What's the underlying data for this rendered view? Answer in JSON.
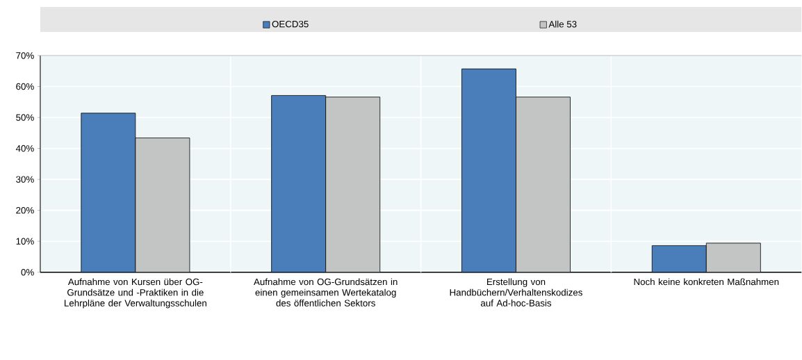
{
  "chart_data": {
    "type": "bar",
    "categories": [
      "Aufnahme von Kursen über OG-Grundsätze und -Praktiken in die Lehrpläne der Verwaltungsschulen",
      "Aufnahme von OG-Grundsätzen in einen gemeinsamen Wertekatalog des öffentlichen Sektors",
      "Erstellung von Handbüchern/Verhaltenskodizes auf Ad-hoc-Basis",
      "Noch keine konkreten Maßnahmen"
    ],
    "series": [
      {
        "name": "OECD35",
        "color": "#4a7ebb",
        "values": [
          51.4,
          57.1,
          65.7,
          8.6
        ]
      },
      {
        "name": "Alle 53",
        "color": "#c3c4c4",
        "values": [
          43.4,
          56.6,
          56.6,
          9.4
        ]
      }
    ],
    "ylim": [
      0,
      70
    ],
    "yticks": [
      {
        "value": 0,
        "label": "0%"
      },
      {
        "value": 10,
        "label": "10%"
      },
      {
        "value": 20,
        "label": "20%"
      },
      {
        "value": 30,
        "label": "30%"
      },
      {
        "value": 40,
        "label": "40%"
      },
      {
        "value": 50,
        "label": "50%"
      },
      {
        "value": 60,
        "label": "60%"
      },
      {
        "value": 70,
        "label": "70%"
      }
    ],
    "grid": true,
    "legend": "top"
  }
}
